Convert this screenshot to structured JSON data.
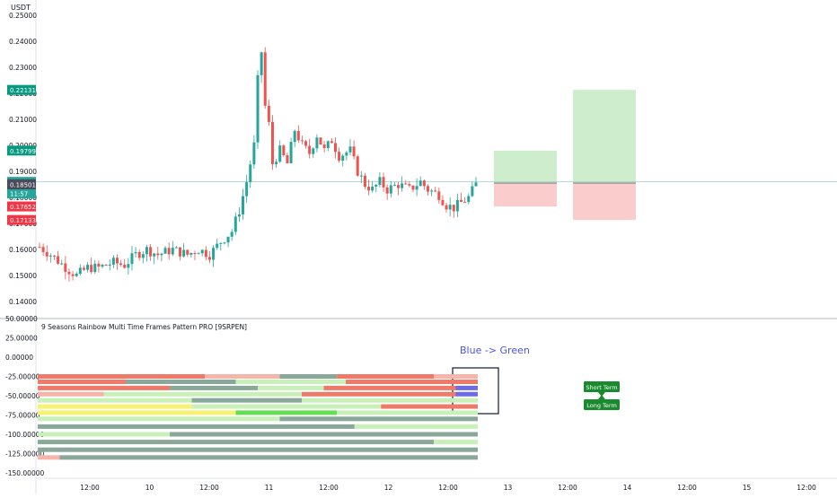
{
  "currency_label": "USDT",
  "indicator_title": "9 Seasons Rainbow Multi Time Frames Pattern PRO [9SRPEN]",
  "annotation_text": "Blue -> Green",
  "badges": [
    {
      "value": "0.22131",
      "color": "#089981"
    },
    {
      "value": "0.19799",
      "color": "#089981"
    },
    {
      "value": "0.18598",
      "color": "#26a69a"
    },
    {
      "value": "11:57",
      "color": "#26a69a"
    },
    {
      "value": "0.18509",
      "color": "#4a4a5a"
    },
    {
      "value": "0.18501",
      "color": "#4a4a5a"
    },
    {
      "value": "0.17652",
      "color": "#f23645"
    },
    {
      "value": "0.17133",
      "color": "#f23645"
    }
  ],
  "tags": {
    "short_term": "Short Term",
    "long_term": "Long Term"
  },
  "colors": {
    "up": "#26a69a",
    "down": "#ef5350",
    "rainbow_red": "#ef7a6a",
    "rainbow_pink": "#f5b5aa",
    "rainbow_lightgreen": "#c8f0b8",
    "rainbow_gray": "#8aa89a",
    "rainbow_yellow": "#f7f372",
    "rainbow_green": "#66dd55",
    "rainbow_blue": "#6c6ce8",
    "tag_bg": "#1a8a2e"
  },
  "chart_data": [
    {
      "type": "candlestick",
      "y_axis_ticks": [
        "0.25000",
        "0.24000",
        "0.23000",
        "0.22000",
        "0.21000",
        "0.20000",
        "0.19000",
        "0.18000",
        "0.17000",
        "0.16000",
        "0.15000",
        "0.14000"
      ],
      "ylim": [
        0.14,
        0.25
      ],
      "x_axis_ticks": [
        "12:00",
        "10",
        "12:00",
        "11",
        "12:00",
        "12",
        "12:00",
        "13",
        "12:00",
        "14",
        "12:00",
        "15",
        "12:00"
      ],
      "current_price": 0.18598,
      "trajectory": [
        [
          0,
          0.161
        ],
        [
          3,
          0.158
        ],
        [
          8,
          0.152
        ],
        [
          10,
          0.15
        ],
        [
          13,
          0.153
        ],
        [
          16,
          0.153
        ],
        [
          20,
          0.155
        ],
        [
          23,
          0.154
        ],
        [
          26,
          0.158
        ],
        [
          29,
          0.16
        ],
        [
          32,
          0.158
        ],
        [
          36,
          0.16
        ],
        [
          40,
          0.158
        ],
        [
          43,
          0.16
        ],
        [
          46,
          0.158
        ],
        [
          49,
          0.163
        ],
        [
          52,
          0.167
        ],
        [
          54,
          0.175
        ],
        [
          56,
          0.186
        ],
        [
          58,
          0.2
        ],
        [
          59,
          0.225
        ],
        [
          60,
          0.236
        ],
        [
          61,
          0.215
        ],
        [
          62,
          0.208
        ],
        [
          63,
          0.193
        ],
        [
          65,
          0.198
        ],
        [
          67,
          0.193
        ],
        [
          69,
          0.206
        ],
        [
          71,
          0.2
        ],
        [
          73,
          0.197
        ],
        [
          75,
          0.204
        ],
        [
          77,
          0.198
        ],
        [
          79,
          0.202
        ],
        [
          81,
          0.196
        ],
        [
          84,
          0.198
        ],
        [
          86,
          0.19
        ],
        [
          88,
          0.185
        ],
        [
          90,
          0.183
        ],
        [
          92,
          0.186
        ],
        [
          94,
          0.183
        ],
        [
          97,
          0.185
        ],
        [
          100,
          0.183
        ],
        [
          103,
          0.186
        ],
        [
          105,
          0.183
        ],
        [
          108,
          0.181
        ],
        [
          110,
          0.177
        ],
        [
          112,
          0.176
        ],
        [
          114,
          0.178
        ],
        [
          116,
          0.18
        ],
        [
          118,
          0.185
        ]
      ],
      "positions": [
        {
          "entry": 0.1855,
          "target": 0.19799,
          "stop": 0.17652
        },
        {
          "entry": 0.1855,
          "target": 0.22131,
          "stop": 0.17133
        }
      ]
    },
    {
      "type": "heatmap",
      "title": "9 Seasons Rainbow Multi Time Frames Pattern PRO [9SRPEN]",
      "y_axis_ticks": [
        "50.00000",
        "25.00000",
        "0.00000",
        "-25.00000",
        "-50.00000",
        "-75.00000",
        "-100.00000",
        "-125.00000",
        "-150.00000"
      ],
      "ylim": [
        -150,
        50
      ],
      "rows": [
        {
          "level": -25,
          "segments": [
            [
              "rainbow_red",
              0.0,
              0.38
            ],
            [
              "rainbow_pink",
              0.38,
              0.55
            ],
            [
              "rainbow_gray",
              0.55,
              0.68
            ],
            [
              "rainbow_red",
              0.68,
              0.9
            ],
            [
              "rainbow_pink",
              0.9,
              1.0
            ]
          ]
        },
        {
          "level": -32,
          "segments": [
            [
              "rainbow_red",
              0.0,
              0.2
            ],
            [
              "rainbow_gray",
              0.2,
              0.45
            ],
            [
              "rainbow_lightgreen",
              0.45,
              0.7
            ],
            [
              "rainbow_red",
              0.7,
              1.0
            ]
          ]
        },
        {
          "level": -40,
          "segments": [
            [
              "rainbow_red",
              0.0,
              0.3
            ],
            [
              "rainbow_gray",
              0.3,
              0.5
            ],
            [
              "rainbow_lightgreen",
              0.5,
              0.65
            ],
            [
              "rainbow_red",
              0.65,
              0.95
            ],
            [
              "rainbow_blue",
              0.95,
              1.0
            ]
          ]
        },
        {
          "level": -48,
          "segments": [
            [
              "rainbow_pink",
              0.0,
              0.15
            ],
            [
              "rainbow_lightgreen",
              0.15,
              0.6
            ],
            [
              "rainbow_red",
              0.6,
              0.95
            ],
            [
              "rainbow_blue",
              0.95,
              1.0
            ]
          ]
        },
        {
          "level": -56,
          "segments": [
            [
              "rainbow_lightgreen",
              0.0,
              0.35
            ],
            [
              "rainbow_gray",
              0.35,
              0.6
            ],
            [
              "rainbow_lightgreen",
              0.6,
              1.0
            ]
          ]
        },
        {
          "level": -64,
          "segments": [
            [
              "rainbow_yellow",
              0.0,
              0.35
            ],
            [
              "rainbow_lightgreen",
              0.35,
              0.78
            ],
            [
              "rainbow_red",
              0.78,
              1.0
            ]
          ]
        },
        {
          "level": -72,
          "segments": [
            [
              "rainbow_yellow",
              0.0,
              0.45
            ],
            [
              "rainbow_green",
              0.45,
              0.68
            ],
            [
              "rainbow_lightgreen",
              0.68,
              1.0
            ]
          ]
        },
        {
          "level": -80,
          "segments": [
            [
              "rainbow_lightgreen",
              0.0,
              0.55
            ],
            [
              "rainbow_gray",
              0.55,
              1.0
            ]
          ]
        },
        {
          "level": -90,
          "segments": [
            [
              "rainbow_gray",
              0.0,
              0.72
            ],
            [
              "rainbow_lightgreen",
              0.72,
              1.0
            ]
          ]
        },
        {
          "level": -100,
          "segments": [
            [
              "rainbow_lightgreen",
              0.0,
              0.3
            ],
            [
              "rainbow_gray",
              0.3,
              1.0
            ]
          ]
        },
        {
          "level": -110,
          "segments": [
            [
              "rainbow_gray",
              0.0,
              0.9
            ],
            [
              "rainbow_lightgreen",
              0.9,
              1.0
            ]
          ]
        },
        {
          "level": -120,
          "segments": [
            [
              "rainbow_gray",
              0.0,
              1.0
            ]
          ]
        },
        {
          "level": -130,
          "segments": [
            [
              "rainbow_pink",
              0.0,
              0.05
            ],
            [
              "rainbow_gray",
              0.05,
              1.0
            ]
          ]
        }
      ]
    }
  ]
}
